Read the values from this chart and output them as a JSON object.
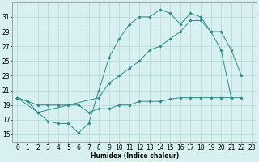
{
  "line1_x": [
    0,
    1,
    2,
    3,
    4,
    5,
    6,
    7,
    8,
    9,
    10,
    11,
    12,
    13,
    14,
    15,
    16,
    17,
    18,
    19,
    20,
    21
  ],
  "line1_y": [
    20,
    19.5,
    18,
    16.8,
    16.5,
    16.5,
    15.2,
    16.5,
    21,
    25.5,
    28,
    30,
    31,
    31,
    32,
    31.5,
    30,
    31.5,
    31,
    29,
    26.5,
    20
  ],
  "line2_x": [
    0,
    2,
    8,
    9,
    10,
    11,
    12,
    13,
    14,
    15,
    16,
    17,
    18,
    19,
    20,
    21,
    22
  ],
  "line2_y": [
    20,
    18,
    20,
    22,
    23,
    24,
    25,
    26.5,
    27,
    28,
    29,
    30.5,
    30.5,
    29,
    29,
    26.5,
    23
  ],
  "line3_x": [
    0,
    1,
    2,
    3,
    4,
    5,
    6,
    7,
    8,
    9,
    10,
    11,
    12,
    13,
    14,
    15,
    16,
    17,
    18,
    19,
    20,
    21,
    22
  ],
  "line3_y": [
    20,
    19.5,
    19,
    19,
    19,
    19,
    19,
    18,
    18.5,
    18.5,
    19,
    19,
    19.5,
    19.5,
    19.5,
    19.8,
    20,
    20,
    20,
    20,
    20,
    20,
    20
  ],
  "color": "#2e8b8b",
  "bg_color": "#d8f0f0",
  "grid_color": "#b0d8d8",
  "xlabel": "Humidex (Indice chaleur)",
  "ylim": [
    14,
    33
  ],
  "xlim": [
    -0.5,
    23.5
  ],
  "yticks": [
    15,
    17,
    19,
    21,
    23,
    25,
    27,
    29,
    31
  ],
  "xticks": [
    0,
    1,
    2,
    3,
    4,
    5,
    6,
    7,
    8,
    9,
    10,
    11,
    12,
    13,
    14,
    15,
    16,
    17,
    18,
    19,
    20,
    21,
    22,
    23
  ],
  "font_size": 5.5
}
